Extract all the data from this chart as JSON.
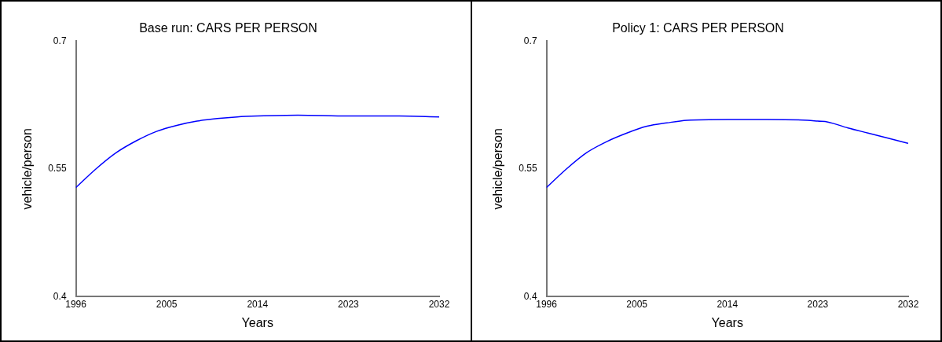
{
  "chart_data": [
    {
      "type": "line",
      "title": "Base run: CARS PER PERSON",
      "xlabel": "Years",
      "ylabel": "vehicle/person",
      "x": [
        1996,
        1998,
        2000,
        2002,
        2004,
        2006,
        2008,
        2010,
        2012,
        2014,
        2018,
        2023,
        2028,
        2032
      ],
      "series": [
        {
          "color": "#0000ff",
          "values": [
            0.528,
            0.55,
            0.569,
            0.583,
            0.594,
            0.601,
            0.606,
            0.609,
            0.611,
            0.612,
            0.613,
            0.612,
            0.612,
            0.611
          ]
        }
      ],
      "xlim": [
        1996,
        2032
      ],
      "xticks": [
        1996,
        2005,
        2014,
        2023,
        2032
      ],
      "ylim": [
        0.4,
        0.7
      ],
      "yticks": [
        0.4,
        0.55,
        0.7
      ],
      "grid": false,
      "legend": false
    },
    {
      "type": "line",
      "title": "Policy 1: CARS PER PERSON",
      "xlabel": "Years",
      "ylabel": "vehicle/person",
      "x": [
        1996,
        1998,
        2000,
        2002,
        2004,
        2006,
        2008,
        2010,
        2014,
        2018,
        2022,
        2023,
        2024,
        2026,
        2028,
        2030,
        2032
      ],
      "series": [
        {
          "color": "#0000ff",
          "values": [
            0.528,
            0.55,
            0.569,
            0.582,
            0.592,
            0.6,
            0.604,
            0.607,
            0.608,
            0.608,
            0.607,
            0.606,
            0.605,
            0.598,
            0.592,
            0.586,
            0.58
          ]
        }
      ],
      "xlim": [
        1996,
        2032
      ],
      "xticks": [
        1996,
        2005,
        2014,
        2023,
        2032
      ],
      "ylim": [
        0.4,
        0.7
      ],
      "yticks": [
        0.4,
        0.55,
        0.7
      ],
      "grid": false,
      "legend": false
    }
  ]
}
